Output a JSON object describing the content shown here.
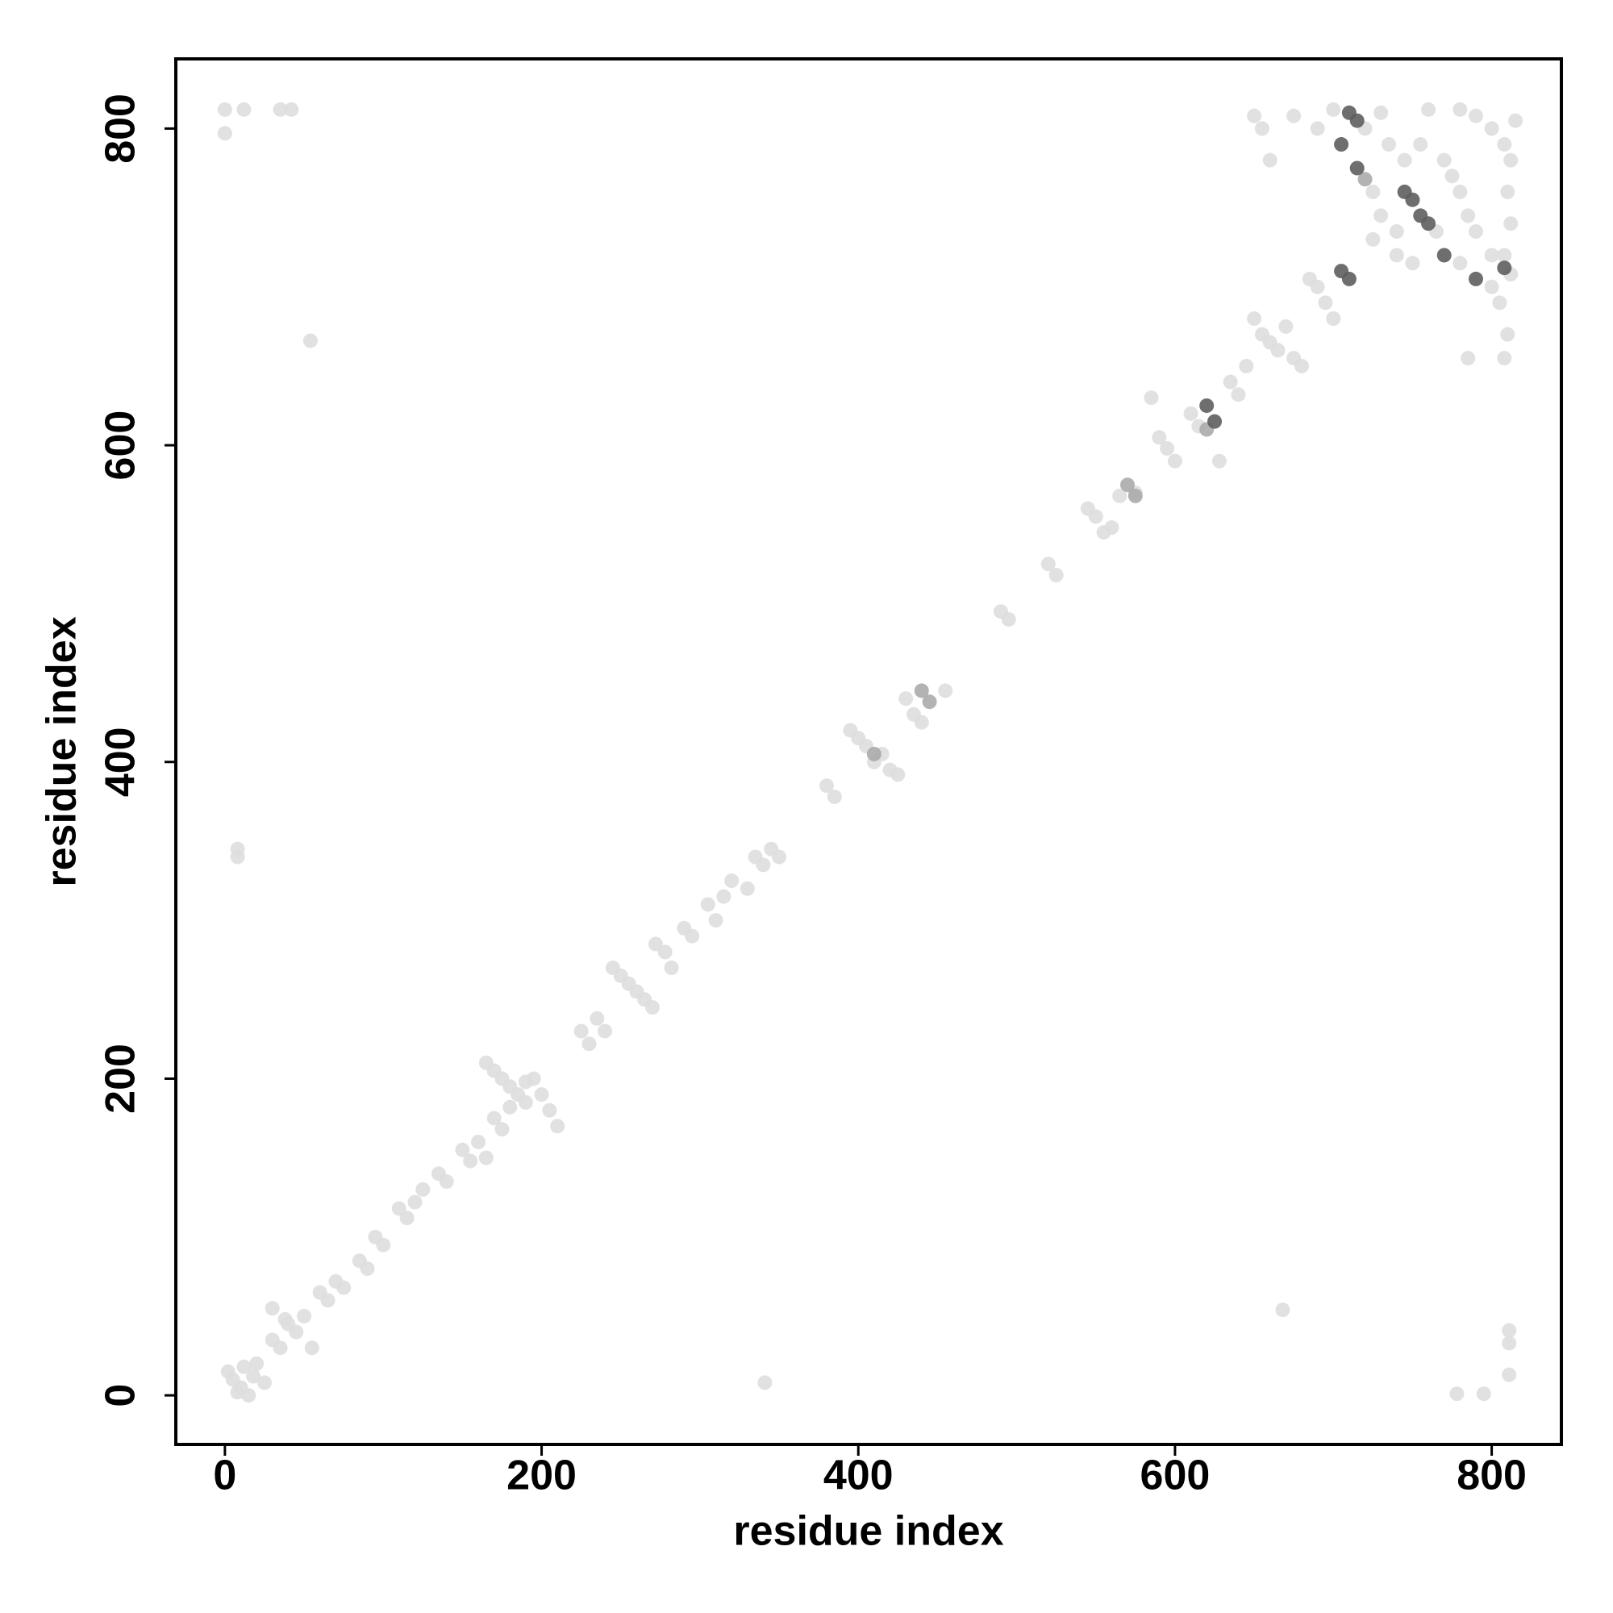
{
  "chart_data": {
    "type": "scatter",
    "xlabel": "residue index",
    "ylabel": "residue index",
    "xlim": [
      -31,
      844
    ],
    "ylim": [
      -31,
      844
    ],
    "xticks": [
      0,
      200,
      400,
      600,
      800
    ],
    "yticks": [
      0,
      200,
      400,
      600,
      800
    ],
    "series": [
      {
        "color": "#dedede",
        "x": [
          0,
          12,
          0,
          35,
          42,
          54,
          8,
          8,
          668,
          811,
          811,
          811,
          778,
          795,
          341,
          5,
          10,
          12,
          18,
          8,
          20,
          15,
          25,
          2,
          30,
          35,
          40,
          45,
          50,
          55,
          30,
          38,
          60,
          65,
          70,
          75,
          85,
          90,
          95,
          100,
          110,
          115,
          120,
          125,
          135,
          140,
          150,
          155,
          160,
          165,
          165,
          170,
          175,
          180,
          185,
          190,
          195,
          200,
          205,
          210,
          170,
          175,
          180,
          190,
          225,
          230,
          235,
          240,
          245,
          250,
          255,
          260,
          265,
          270,
          272,
          278,
          282,
          290,
          295,
          305,
          310,
          315,
          320,
          330,
          335,
          340,
          345,
          350,
          380,
          385,
          395,
          400,
          405,
          410,
          415,
          420,
          425,
          430,
          435,
          440,
          455,
          490,
          495,
          520,
          525,
          545,
          550,
          555,
          560,
          565,
          575,
          585,
          590,
          595,
          600,
          610,
          615,
          628,
          635,
          640,
          645,
          650,
          655,
          660,
          665,
          670,
          675,
          680,
          685,
          690,
          695,
          700,
          700,
          720,
          725,
          730,
          740,
          765,
          770,
          775,
          780,
          785,
          790,
          800,
          812,
          780,
          800,
          650,
          655,
          660,
          675,
          690,
          760,
          780,
          790,
          800,
          808,
          812,
          810,
          812,
          808,
          805,
          810,
          808,
          785,
          735,
          745,
          755,
          725,
          740,
          750,
          730,
          815
        ],
        "values": [
          812,
          812,
          797,
          812,
          812,
          666,
          345,
          340,
          54,
          41,
          33,
          13,
          1,
          1,
          8,
          10,
          5,
          18,
          12,
          2,
          20,
          0,
          8,
          15,
          35,
          30,
          45,
          40,
          50,
          30,
          55,
          48,
          65,
          60,
          72,
          68,
          85,
          80,
          100,
          95,
          118,
          112,
          122,
          130,
          140,
          135,
          155,
          148,
          160,
          150,
          210,
          205,
          200,
          195,
          190,
          198,
          200,
          190,
          180,
          170,
          175,
          168,
          182,
          185,
          230,
          222,
          238,
          230,
          270,
          265,
          260,
          255,
          250,
          245,
          285,
          280,
          270,
          295,
          290,
          310,
          300,
          315,
          325,
          320,
          340,
          335,
          345,
          340,
          385,
          378,
          420,
          415,
          410,
          400,
          405,
          395,
          392,
          440,
          430,
          425,
          445,
          495,
          490,
          525,
          518,
          560,
          555,
          545,
          548,
          568,
          570,
          630,
          605,
          598,
          590,
          620,
          612,
          590,
          640,
          632,
          650,
          680,
          670,
          665,
          660,
          675,
          655,
          650,
          705,
          700,
          690,
          680,
          812,
          800,
          760,
          745,
          735,
          735,
          780,
          770,
          760,
          745,
          735,
          720,
          708,
          715,
          700,
          808,
          800,
          780,
          808,
          800,
          812,
          812,
          808,
          800,
          790,
          780,
          760,
          740,
          720,
          690,
          670,
          655,
          655,
          790,
          780,
          790,
          730,
          720,
          715,
          810,
          805
        ]
      },
      {
        "color": "#ababab",
        "x": [
          410,
          440,
          445,
          570,
          575,
          620,
          720
        ],
        "values": [
          405,
          445,
          438,
          575,
          568,
          610,
          768
        ]
      },
      {
        "color": "#5e5e5e",
        "x": [
          620,
          625,
          705,
          710,
          710,
          715,
          705,
          715,
          745,
          750,
          755,
          760,
          808,
          770,
          790
        ],
        "values": [
          625,
          615,
          710,
          705,
          810,
          805,
          790,
          775,
          760,
          755,
          745,
          740,
          712,
          720,
          705
        ]
      }
    ]
  }
}
